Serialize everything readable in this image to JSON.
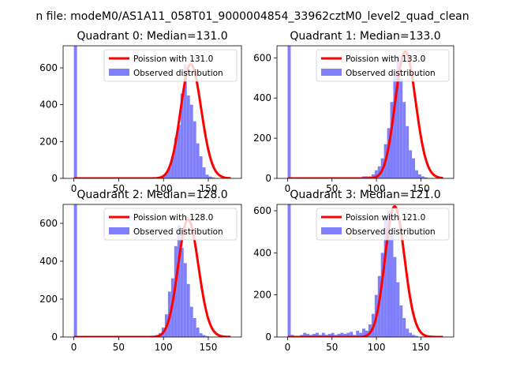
{
  "figure_title": "n file: modeM0/AS1A11_058T01_9000004854_33962cztM0_level2_quad_clean",
  "colors": {
    "hist": "#8080ff",
    "poisson": "#ff0000",
    "axis": "#000000"
  },
  "chart_data": [
    {
      "type": "bar",
      "title": "Quadrant 0: Median=131.0",
      "xlim": [
        -12,
        187
      ],
      "ylim": [
        0,
        720
      ],
      "xticks": [
        0,
        50,
        100,
        150
      ],
      "yticks": [
        0,
        200,
        400,
        600
      ],
      "legend_poisson": "Poission with 131.0",
      "legend_hist": "Observed distribution",
      "legend_position": "upper right",
      "bins_start": 0,
      "bin_width": 3.5,
      "hist": [
        720,
        0,
        0,
        0,
        0,
        0,
        0,
        0,
        0,
        0,
        0,
        0,
        0,
        0,
        0,
        0,
        0,
        0,
        0,
        0,
        0,
        0,
        0,
        0,
        0,
        0,
        5,
        5,
        15,
        30,
        60,
        120,
        220,
        290,
        460,
        620,
        450,
        400,
        310,
        190,
        120,
        60,
        20,
        10,
        5,
        0,
        0,
        0,
        0,
        0,
        0,
        0
      ],
      "poisson_mean": 131.0,
      "poisson_scale": 620
    },
    {
      "type": "bar",
      "title": "Quadrant 1: Median=133.0",
      "xlim": [
        -12,
        187
      ],
      "ylim": [
        0,
        660
      ],
      "xticks": [
        0,
        50,
        100,
        150
      ],
      "yticks": [
        0,
        200,
        400,
        600
      ],
      "legend_poisson": "Poission with 133.0",
      "legend_hist": "Observed distribution",
      "legend_position": "upper right",
      "bins_start": 0,
      "bin_width": 3.5,
      "hist": [
        660,
        0,
        0,
        0,
        0,
        0,
        0,
        0,
        0,
        0,
        0,
        0,
        0,
        0,
        0,
        0,
        0,
        0,
        0,
        0,
        0,
        5,
        0,
        5,
        10,
        10,
        10,
        20,
        40,
        60,
        100,
        170,
        250,
        380,
        520,
        610,
        500,
        380,
        260,
        140,
        100,
        40,
        20,
        10,
        5,
        0,
        0,
        0,
        0,
        0,
        0,
        0
      ],
      "poisson_mean": 133.0,
      "poisson_scale": 630
    },
    {
      "type": "bar",
      "title": "Quadrant 2: Median=128.0",
      "xlim": [
        -12,
        187
      ],
      "ylim": [
        0,
        700
      ],
      "xticks": [
        0,
        50,
        100,
        150
      ],
      "yticks": [
        0,
        200,
        400,
        600
      ],
      "legend_poisson": "Poission with 128.0",
      "legend_hist": "Observed distribution",
      "legend_position": "upper right",
      "bins_start": 0,
      "bin_width": 3.5,
      "hist": [
        700,
        0,
        0,
        0,
        0,
        0,
        0,
        0,
        0,
        0,
        0,
        0,
        0,
        0,
        0,
        0,
        0,
        0,
        0,
        0,
        0,
        0,
        0,
        0,
        0,
        5,
        10,
        20,
        50,
        120,
        240,
        310,
        480,
        590,
        470,
        390,
        280,
        160,
        100,
        50,
        20,
        10,
        5,
        0,
        0,
        0,
        0,
        0,
        0,
        0,
        0,
        0
      ],
      "poisson_mean": 128.0,
      "poisson_scale": 620
    },
    {
      "type": "bar",
      "title": "Quadrant 3: Median=121.0",
      "xlim": [
        -12,
        187
      ],
      "ylim": [
        0,
        630
      ],
      "xticks": [
        0,
        50,
        100,
        150
      ],
      "yticks": [
        0,
        200,
        400,
        600
      ],
      "legend_poisson": "Poission with 121.0",
      "legend_hist": "Observed distribution",
      "legend_position": "upper right",
      "bins_start": 0,
      "bin_width": 3.5,
      "hist": [
        630,
        10,
        0,
        5,
        10,
        20,
        15,
        10,
        15,
        20,
        10,
        20,
        10,
        15,
        20,
        10,
        15,
        20,
        15,
        20,
        25,
        10,
        30,
        20,
        40,
        30,
        60,
        110,
        200,
        290,
        400,
        560,
        600,
        490,
        380,
        260,
        150,
        90,
        40,
        20,
        10,
        5,
        0,
        0,
        0,
        0,
        0,
        0,
        0,
        0,
        0,
        0
      ],
      "poisson_mean": 121.0,
      "poisson_scale": 620
    }
  ]
}
